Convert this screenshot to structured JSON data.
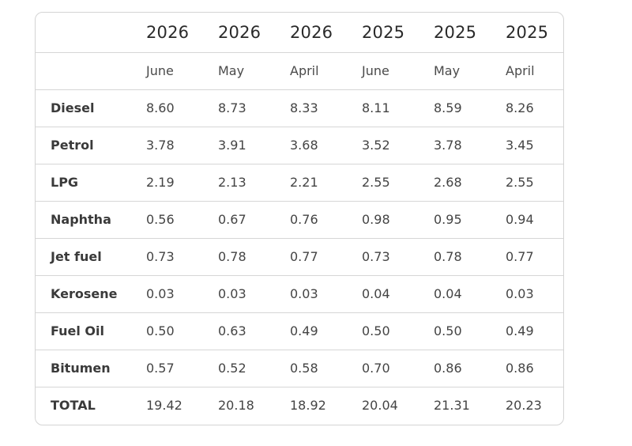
{
  "table": {
    "years": [
      "2026",
      "2026",
      "2026",
      "2025",
      "2025",
      "2025"
    ],
    "months": [
      "June",
      "May",
      "April",
      "June",
      "May",
      "April"
    ],
    "rows": [
      {
        "label": "Diesel",
        "values": [
          "8.60",
          "8.73",
          "8.33",
          "8.11",
          "8.59",
          "8.26"
        ]
      },
      {
        "label": "Petrol",
        "values": [
          "3.78",
          "3.91",
          "3.68",
          "3.52",
          "3.78",
          "3.45"
        ]
      },
      {
        "label": "LPG",
        "values": [
          "2.19",
          "2.13",
          "2.21",
          "2.55",
          "2.68",
          "2.55"
        ]
      },
      {
        "label": "Naphtha",
        "values": [
          "0.56",
          "0.67",
          "0.76",
          "0.98",
          "0.95",
          "0.94"
        ]
      },
      {
        "label": "Jet fuel",
        "values": [
          "0.73",
          "0.78",
          "0.77",
          "0.73",
          "0.78",
          "0.77"
        ]
      },
      {
        "label": "Kerosene",
        "values": [
          "0.03",
          "0.03",
          "0.03",
          "0.04",
          "0.04",
          "0.03"
        ]
      },
      {
        "label": "Fuel Oil",
        "values": [
          "0.50",
          "0.63",
          "0.49",
          "0.50",
          "0.50",
          "0.49"
        ]
      },
      {
        "label": "Bitumen",
        "values": [
          "0.57",
          "0.52",
          "0.58",
          "0.70",
          "0.86",
          "0.86"
        ]
      },
      {
        "label": "TOTAL",
        "values": [
          "19.42",
          "20.18",
          "18.92",
          "20.04",
          "21.31",
          "20.23"
        ]
      }
    ]
  }
}
